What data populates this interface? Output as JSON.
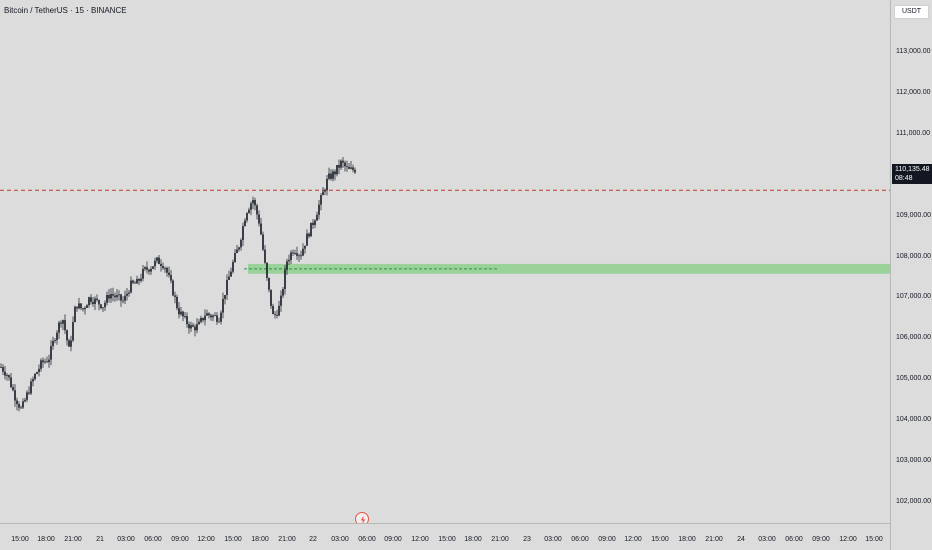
{
  "header": {
    "symbol_title": "Bitcoin / TetherUS · 15 · BINANCE",
    "currency_button": "USDT"
  },
  "price_scale": {
    "labels": [
      "113,000.00",
      "112,000.00",
      "111,000.00",
      "109,000.00",
      "108,000.00",
      "107,000.00",
      "106,000.00",
      "105,000.00",
      "104,000.00",
      "103,000.00",
      "102,000.00"
    ],
    "last_price": "110,135.48",
    "countdown": "08:48"
  },
  "time_scale": {
    "labels": [
      "15:00",
      "18:00",
      "21:00",
      "21",
      "03:00",
      "06:00",
      "09:00",
      "12:00",
      "15:00",
      "18:00",
      "21:00",
      "22",
      "03:00",
      "06:00",
      "09:00",
      "12:00",
      "15:00",
      "18:00",
      "21:00",
      "23",
      "03:00",
      "06:00",
      "09:00",
      "12:00",
      "15:00",
      "18:00",
      "21:00",
      "24",
      "03:00",
      "06:00",
      "09:00",
      "12:00",
      "15:00"
    ]
  },
  "icons": {
    "lightning": "lightning-icon"
  },
  "colors": {
    "candle": "#131722",
    "resistance_line": "#c0392b",
    "zone": "#8ed08e",
    "zone_line": "#2e8b57",
    "last_price_bg": "#131722"
  },
  "chart_data": {
    "type": "candlestick",
    "symbol": "Bitcoin / TetherUS",
    "interval": "15",
    "exchange": "BINANCE",
    "y_range": [
      101500,
      113700
    ],
    "last_price": 110135.48,
    "horizontal_line": 109620,
    "demand_zone": [
      107580,
      107820
    ],
    "demand_zone_midline": 107700,
    "path": [
      105300,
      105100,
      104600,
      104250,
      104700,
      105100,
      105400,
      105500,
      106100,
      106550,
      105700,
      106850,
      106700,
      107000,
      106900,
      106800,
      107100,
      107000,
      106900,
      107300,
      107350,
      107650,
      107750,
      107900,
      107800,
      107300,
      106700,
      106450,
      106250,
      106300,
      106600,
      106550,
      106500,
      107200,
      107800,
      108300,
      109100,
      109400,
      108800,
      107500,
      106500,
      106800,
      107900,
      108200,
      108050,
      108500,
      108900,
      109400,
      109900,
      110050,
      110300,
      110100,
      110135
    ]
  }
}
